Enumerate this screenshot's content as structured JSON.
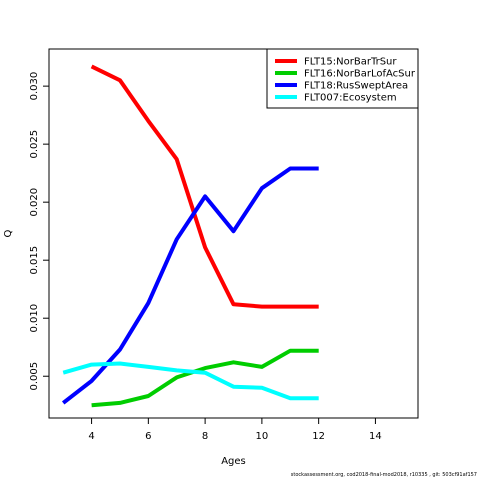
{
  "chart_data": {
    "type": "line",
    "title": "",
    "xlabel": "Ages",
    "ylabel": "Q",
    "xlim": [
      2.5,
      15.5
    ],
    "ylim": [
      0.0014,
      0.0332
    ],
    "xticks": [
      4,
      6,
      8,
      10,
      12,
      14
    ],
    "yticks": [
      0.005,
      0.01,
      0.015,
      0.02,
      0.025,
      0.03
    ],
    "ytick_labels": [
      "0.005",
      "0.010",
      "0.015",
      "0.020",
      "0.025",
      "0.030"
    ],
    "grid": false,
    "legend_position": "top-right",
    "series": [
      {
        "name": "FLT15:NorBarTrSur",
        "color": "#ff0000",
        "x": [
          4,
          5,
          6,
          7,
          8,
          9,
          10,
          11,
          12
        ],
        "y": [
          0.0317,
          0.0305,
          0.027,
          0.0237,
          0.0161,
          0.0112,
          0.011,
          0.011,
          0.011
        ]
      },
      {
        "name": "FLT16:NorBarLofAcSur",
        "color": "#00cd00",
        "x": [
          4,
          5,
          6,
          7,
          8,
          9,
          10,
          11,
          12
        ],
        "y": [
          0.0025,
          0.0027,
          0.0033,
          0.0049,
          0.0057,
          0.0062,
          0.0058,
          0.0072,
          0.0072
        ]
      },
      {
        "name": "FLT18:RusSweptArea",
        "color": "#0000ff",
        "x": [
          3,
          4,
          5,
          6,
          7,
          8,
          9,
          10,
          11,
          12
        ],
        "y": [
          0.0027,
          0.0046,
          0.0073,
          0.0113,
          0.0168,
          0.0205,
          0.0175,
          0.0212,
          0.0229,
          0.0229
        ]
      },
      {
        "name": "FLT007:Ecosystem",
        "color": "#00ffff",
        "x": [
          3,
          4,
          5,
          6,
          7,
          8,
          9,
          10,
          11,
          12
        ],
        "y": [
          0.0053,
          0.006,
          0.0061,
          0.0058,
          0.0055,
          0.0053,
          0.0041,
          0.004,
          0.0031,
          0.0031
        ]
      }
    ]
  },
  "footer_text": "stockassessment.org,  cod2018-final-mod2018,  r10335  ,  git:  503cf91af157"
}
